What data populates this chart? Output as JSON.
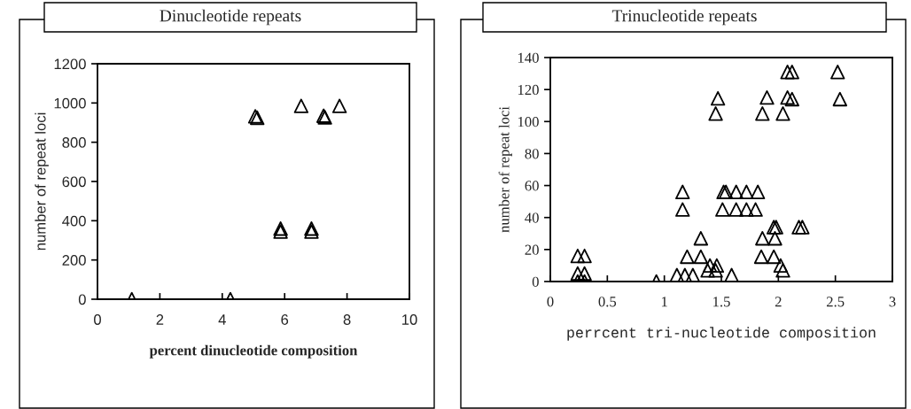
{
  "chart_data": [
    {
      "type": "scatter",
      "title": "Dinucleotide repeats",
      "xlabel": "percent dinucleotide composition",
      "ylabel": "number of repeat loci",
      "marker": "triangle",
      "grid": false,
      "legend": false,
      "xlim": [
        0,
        10
      ],
      "ylim": [
        0,
        1200
      ],
      "xticks": [
        0,
        2,
        4,
        6,
        8,
        10
      ],
      "yticks": [
        0,
        200,
        400,
        600,
        800,
        1000,
        1200
      ],
      "series": [
        {
          "color": "#000000",
          "x": [
            1.1,
            4.26,
            5.06,
            5.12,
            6.53,
            7.25,
            7.29,
            7.76,
            5.87,
            5.87,
            6.86,
            6.86
          ],
          "values": [
            0,
            0,
            932,
            925,
            985,
            935,
            927,
            985,
            360,
            345,
            360,
            345
          ]
        }
      ]
    },
    {
      "type": "scatter",
      "title": "Trinucleotide repeats",
      "xlabel": "perrcent tri-nucleotide composition",
      "ylabel": "number of repeat loci",
      "marker": "triangle",
      "grid": false,
      "legend": false,
      "xlim": [
        0,
        3
      ],
      "ylim": [
        0,
        140
      ],
      "xticks": [
        0,
        {
          "value": 0.5,
          "label": "0.5"
        },
        1,
        {
          "value": 1.5,
          "label": "1.5"
        },
        2,
        {
          "value": 2.5,
          "label": "2.5"
        },
        3
      ],
      "yticks": [
        0,
        20,
        40,
        60,
        80,
        100,
        120,
        140
      ],
      "series": [
        {
          "color": "#000000",
          "x": [
            0.24,
            0.3,
            0.24,
            0.3,
            0.24,
            0.3,
            0.93,
            1.11,
            1.18,
            1.25,
            1.16,
            1.16,
            1.2,
            1.32,
            1.32,
            1.38,
            1.45,
            1.4,
            1.46,
            1.59,
            1.47,
            1.45,
            1.52,
            1.54,
            1.63,
            1.72,
            1.82,
            1.51,
            1.63,
            1.72,
            1.8,
            1.9,
            1.86,
            2.04,
            2.08,
            2.12,
            2.08,
            2.12,
            2.52,
            2.54,
            1.86,
            1.97,
            1.85,
            1.96,
            1.96,
            1.98,
            2.18,
            2.21,
            2.02,
            2.04
          ],
          "values": [
            16,
            16,
            5,
            5,
            0,
            0,
            0,
            4,
            4,
            4,
            56,
            45,
            15.5,
            27,
            15.5,
            7,
            7,
            10,
            10,
            4,
            114.5,
            105,
            56,
            56,
            56,
            56,
            56,
            45,
            45,
            45,
            45,
            115,
            105,
            105,
            131,
            131,
            115,
            114,
            131,
            114,
            27,
            27,
            15.5,
            15.5,
            34,
            34,
            34,
            34,
            10,
            7
          ]
        }
      ]
    }
  ]
}
